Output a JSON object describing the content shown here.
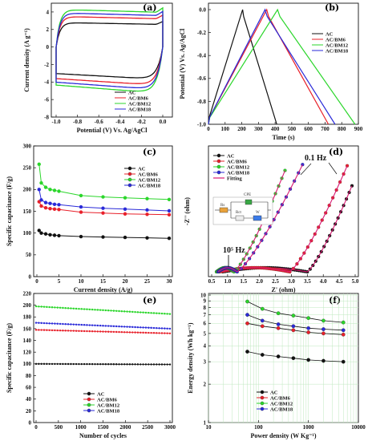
{
  "series_names": [
    "AC",
    "AC/BM6",
    "AC/BM12",
    "AC/BM18"
  ],
  "colors": {
    "AC": "#111111",
    "AC/BM6": "#e8202a",
    "AC/BM12": "#2bd62b",
    "AC/BM18": "#2a2ad8",
    "fitting": "#d81b73"
  },
  "chart_data": [
    {
      "panel": "(a)",
      "type": "line",
      "xlabel": "Potential (V) Vs. Ag/AgCl",
      "ylabel": "Current density (A g⁻¹)",
      "xlim": [
        -1.0,
        0.0
      ],
      "ylim": [
        -8,
        5
      ],
      "xticks": [
        -1.0,
        -0.8,
        -0.6,
        -0.4,
        -0.2,
        0.0
      ],
      "yticks": [
        -8,
        -6,
        -4,
        -2,
        0,
        2,
        4
      ],
      "legend_position": "lower-right",
      "series": [
        {
          "name": "AC",
          "upper": 2.8,
          "lower": -3.7
        },
        {
          "name": "AC/BM6",
          "upper": 3.5,
          "lower": -4.4
        },
        {
          "name": "AC/BM12",
          "upper": 4.3,
          "lower": -5.3
        },
        {
          "name": "AC/BM18",
          "upper": 3.9,
          "lower": -4.9
        }
      ]
    },
    {
      "panel": "(b)",
      "type": "line",
      "xlabel": "Time (s)",
      "ylabel": "Potential (V) Vs. Ag/AgCl",
      "xlim": [
        0,
        900
      ],
      "ylim": [
        -1.0,
        0.0
      ],
      "xticks": [
        0,
        100,
        200,
        300,
        400,
        500,
        600,
        700,
        800,
        900
      ],
      "yticks": [
        -1.0,
        -0.8,
        -0.6,
        -0.4,
        -0.2,
        0.0
      ],
      "legend_position": "top-right",
      "series": [
        {
          "name": "AC",
          "peak_time": 205,
          "end_time": 410
        },
        {
          "name": "AC/BM6",
          "peak_time": 350,
          "end_time": 720
        },
        {
          "name": "AC/BM12",
          "peak_time": 415,
          "end_time": 880
        },
        {
          "name": "AC/BM18",
          "peak_time": 340,
          "end_time": 760
        }
      ]
    },
    {
      "panel": "(c)",
      "type": "line",
      "xlabel": "Current density (A/g)",
      "ylabel": "Specific capacitance (F/g)",
      "xlim": [
        0,
        30
      ],
      "ylim": [
        0,
        300
      ],
      "xticks": [
        0,
        5,
        10,
        15,
        20,
        25,
        30
      ],
      "yticks": [
        0,
        50,
        100,
        150,
        200,
        250,
        300
      ],
      "legend_position": "top-right",
      "x": [
        0.5,
        1,
        2,
        3,
        4,
        5,
        10,
        15,
        20,
        25,
        30
      ],
      "series": [
        {
          "name": "AC",
          "values": [
            106,
            100,
            98,
            96,
            95,
            94,
            92,
            91,
            90,
            89,
            88
          ]
        },
        {
          "name": "AC/BM6",
          "values": [
            172,
            162,
            158,
            156,
            155,
            154,
            148,
            146,
            144,
            143,
            142
          ]
        },
        {
          "name": "AC/BM12",
          "values": [
            258,
            215,
            205,
            200,
            198,
            196,
            186,
            183,
            181,
            179,
            177
          ]
        },
        {
          "name": "AC/BM18",
          "values": [
            200,
            176,
            170,
            168,
            166,
            165,
            160,
            157,
            155,
            153,
            151
          ]
        }
      ]
    },
    {
      "panel": "(d)",
      "type": "scatter",
      "xlabel": "Z' (ohm)",
      "ylabel": "-Z'' (ohm)",
      "xlim": [
        0.5,
        5.0
      ],
      "ylim": [
        0,
        10
      ],
      "xticks": [
        0.5,
        1.0,
        1.5,
        2.0,
        2.5,
        3.0,
        3.5,
        4.0,
        4.5,
        5.0
      ],
      "legend_position": "top-left",
      "legend_extra": "Fitting",
      "annotations": {
        "high_freq": "10⁵ Hz",
        "low_freq": "0.1 Hz"
      },
      "circuit_labels": {
        "cpe": "CPE",
        "rs": "Rs",
        "rct": "Rct",
        "w": "W"
      },
      "series": [
        {
          "name": "AC",
          "r0": 0.85,
          "knee": 3.5,
          "end": [
            4.9,
            7.3
          ]
        },
        {
          "name": "AC/BM6",
          "r0": 0.75,
          "knee": 2.95,
          "end": [
            4.75,
            9.0
          ]
        },
        {
          "name": "AC/BM12",
          "r0": 0.65,
          "knee": 1.2,
          "end": [
            2.8,
            8.6
          ]
        },
        {
          "name": "AC/BM18",
          "r0": 0.7,
          "knee": 1.3,
          "end": [
            3.35,
            9.1
          ]
        }
      ]
    },
    {
      "panel": "(e)",
      "type": "line",
      "xlabel": "Number of cycles",
      "ylabel": "Specific capacitance (F/g)",
      "xlim": [
        0,
        3000
      ],
      "ylim": [
        0,
        220
      ],
      "xticks": [
        0,
        500,
        1000,
        1500,
        2000,
        2500,
        3000
      ],
      "yticks": [
        0,
        20,
        40,
        60,
        80,
        100,
        120,
        140,
        160,
        180,
        200,
        220
      ],
      "legend_position": "bottom-center",
      "series": [
        {
          "name": "AC",
          "start": 100,
          "end": 99
        },
        {
          "name": "AC/BM6",
          "start": 158,
          "end": 152
        },
        {
          "name": "AC/BM12",
          "start": 198,
          "end": 185
        },
        {
          "name": "AC/BM18",
          "start": 170,
          "end": 160
        }
      ]
    },
    {
      "panel": "(f)",
      "type": "line",
      "xlabel": "Power density (W Kg⁻¹)",
      "ylabel": "Energy density (Wh kg⁻¹)",
      "xscale": "log",
      "yscale": "log",
      "xlim": [
        10,
        10000
      ],
      "ylim": [
        1,
        10
      ],
      "xticks": [
        10,
        100,
        1000,
        10000
      ],
      "xticklabels": [
        "10",
        "100",
        "1000",
        "10000"
      ],
      "yticks": [
        1,
        2,
        3,
        4,
        5,
        6,
        7,
        8,
        9,
        10
      ],
      "grid": true,
      "legend_position": "bottom-center",
      "x": [
        60,
        120,
        250,
        500,
        1000,
        2000,
        5000
      ],
      "series": [
        {
          "name": "AC",
          "values": [
            3.6,
            3.4,
            3.3,
            3.2,
            3.1,
            3.05,
            3.0
          ]
        },
        {
          "name": "AC/BM6",
          "values": [
            6.0,
            5.7,
            5.5,
            5.3,
            5.1,
            5.0,
            4.9
          ]
        },
        {
          "name": "AC/BM12",
          "values": [
            8.9,
            7.8,
            7.2,
            6.9,
            6.6,
            6.3,
            6.1
          ]
        },
        {
          "name": "AC/BM18",
          "values": [
            7.0,
            6.3,
            5.9,
            5.7,
            5.5,
            5.4,
            5.3
          ]
        }
      ]
    }
  ]
}
